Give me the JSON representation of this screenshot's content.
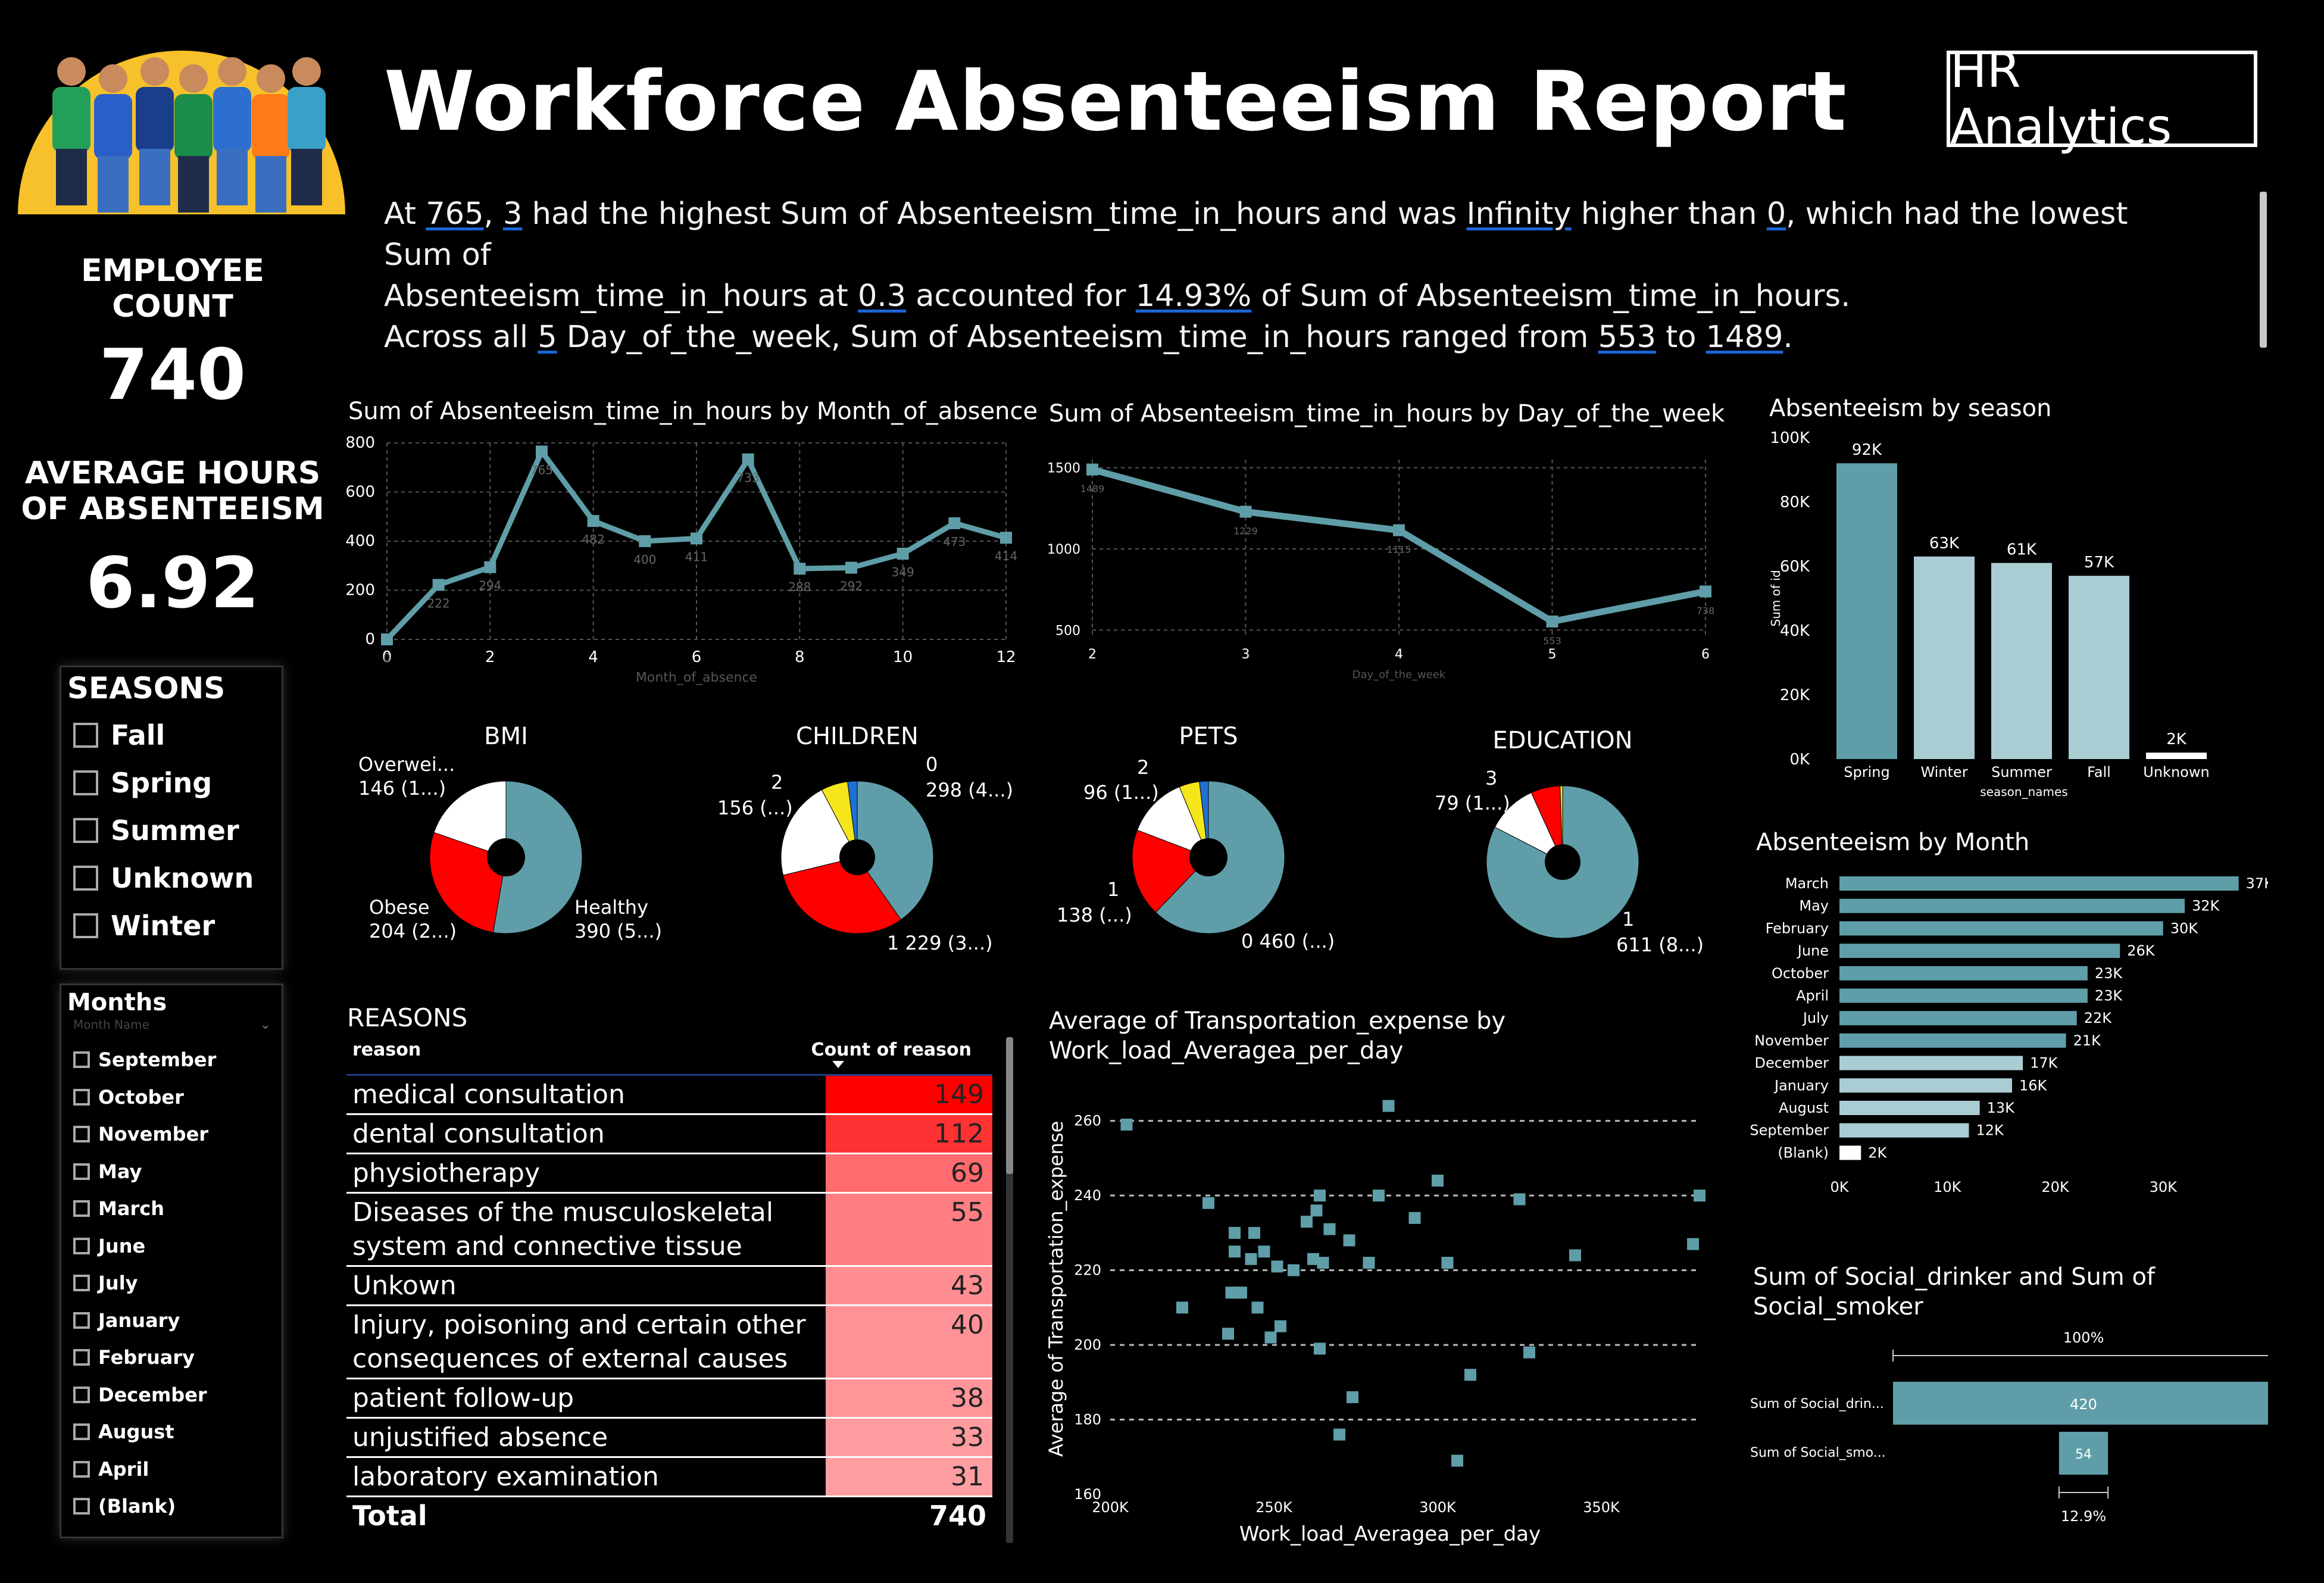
{
  "header": {
    "title": "Workforce Absenteeism Report",
    "badge": "HR Analytics",
    "narrative_line1": [
      "At ",
      "765",
      ", ",
      "3",
      " had the highest Sum of Absenteeism_time_in_hours and was ",
      "Infinity",
      " higher than ",
      "0",
      ", which had the lowest Sum of"
    ],
    "narrative_line2": [
      "Absenteeism_time_in_hours at ",
      "0.3",
      " accounted for ",
      "14.93%",
      " of Sum of Absenteeism_time_in_hours."
    ],
    "narrative_line3": [
      "Across all ",
      "5",
      " Day_of_the_week, Sum of Absenteeism_time_in_hours ranged from ",
      "553",
      " to ",
      "1489",
      "."
    ]
  },
  "kpis": {
    "employee_label_1": "EMPLOYEE",
    "employee_label_2": "COUNT",
    "employee_value": "740",
    "avg_label_1": "AVERAGE HOURS",
    "avg_label_2": "OF ABSENTEEISM",
    "avg_value": "6.92"
  },
  "seasons_slicer": {
    "title": "SEASONS",
    "items": [
      "Fall",
      "Spring",
      "Summer",
      "Unknown",
      "Winter"
    ]
  },
  "months_slicer": {
    "title": "Months",
    "header_placeholder": "Month Name",
    "items": [
      "September",
      "October",
      "November",
      "May",
      "March",
      "June",
      "July",
      "January",
      "February",
      "December",
      "August",
      "April",
      "(Blank)"
    ]
  },
  "colors": {
    "teal": "#5f9ea8",
    "light_teal": "#a9cdd3",
    "red": "#ff0000",
    "yellow": "#f5e61c",
    "blue": "#1f6fd4",
    "background": "#000000"
  },
  "chart_data": [
    {
      "id": "by_month",
      "type": "line",
      "title": "Sum of Absenteeism_time_in_hours by Month_of_absence",
      "xlabel": "Month_of_absence",
      "ylabel": "",
      "x": [
        0,
        1,
        2,
        3,
        4,
        5,
        6,
        7,
        8,
        9,
        10,
        11,
        12
      ],
      "y": [
        0,
        222,
        294,
        765,
        482,
        400,
        411,
        733,
        288,
        292,
        349,
        473,
        414
      ],
      "data_labels": [
        "0",
        "222",
        "294",
        "765",
        "482",
        "400",
        "411",
        "733",
        "288",
        "292",
        "349",
        "473",
        "414"
      ],
      "xlim": [
        0,
        12
      ],
      "ylim": [
        0,
        800
      ],
      "xticks": [
        "0",
        "2",
        "4",
        "6",
        "8",
        "10",
        "12"
      ],
      "yticks": [
        "0",
        "200",
        "400",
        "600",
        "800"
      ],
      "grid": true
    },
    {
      "id": "by_day",
      "type": "line",
      "title": "Sum of Absenteeism_time_in_hours by Day_of_the_week",
      "xlabel": "Day_of_the_week",
      "ylabel": "",
      "x": [
        2,
        3,
        4,
        5,
        6
      ],
      "y": [
        1489,
        1229,
        1115,
        553,
        738
      ],
      "data_labels": [
        "1489",
        "1229",
        "1115",
        "553",
        "738"
      ],
      "xlim": [
        2,
        6
      ],
      "ylim": [
        450,
        1550
      ],
      "xticks": [
        "2",
        "3",
        "4",
        "5",
        "6"
      ],
      "yticks": [
        "500",
        "1000",
        "1500"
      ],
      "grid": true
    },
    {
      "id": "by_season",
      "type": "bar",
      "title": "Absenteeism by season",
      "xlabel": "season_names",
      "ylabel": "Sum of id",
      "categories": [
        "Spring",
        "Winter",
        "Summer",
        "Fall",
        "Unknown"
      ],
      "values": [
        92000,
        63000,
        61000,
        57000,
        2000
      ],
      "data_labels": [
        "92K",
        "63K",
        "61K",
        "57K",
        "2K"
      ],
      "ylim": [
        0,
        100000
      ],
      "yticks": [
        "0K",
        "20K",
        "40K",
        "60K",
        "80K",
        "100K"
      ]
    },
    {
      "id": "by_month_bar",
      "type": "bar",
      "orientation": "horizontal",
      "title": "Absenteeism by Month",
      "categories": [
        "March",
        "May",
        "February",
        "June",
        "October",
        "April",
        "July",
        "November",
        "December",
        "January",
        "August",
        "September",
        "(Blank)"
      ],
      "values": [
        37000,
        32000,
        30000,
        26000,
        23000,
        23000,
        22000,
        21000,
        17000,
        16000,
        13000,
        12000,
        2000
      ],
      "data_labels": [
        "37K",
        "32K",
        "30K",
        "26K",
        "23K",
        "23K",
        "22K",
        "21K",
        "17K",
        "16K",
        "13K",
        "12K",
        "2K"
      ],
      "xlim": [
        0,
        40000
      ],
      "xticks": [
        "0K",
        "10K",
        "20K",
        "30K"
      ]
    },
    {
      "id": "bmi",
      "type": "pie",
      "title": "BMI",
      "slices": [
        {
          "label": "Healthy",
          "value": 390,
          "text": "390 (5...)",
          "color": "#5f9ea8"
        },
        {
          "label": "Obese",
          "value": 204,
          "text": "204 (2...)",
          "color": "#ff0000"
        },
        {
          "label": "Overwei...",
          "value": 146,
          "text": "146 (1...)",
          "color": "#ffffff"
        }
      ]
    },
    {
      "id": "children",
      "type": "pie",
      "title": "CHILDREN",
      "slices": [
        {
          "label": "0",
          "value": 298,
          "text": "298 (4...)",
          "color": "#5f9ea8"
        },
        {
          "label": "1",
          "value": 229,
          "text": "229 (3...)",
          "color": "#ff0000"
        },
        {
          "label": "2",
          "value": 156,
          "text": "156 (...)",
          "color": "#ffffff"
        },
        {
          "label": "",
          "value": 42,
          "text": "",
          "color": "#f5e61c"
        },
        {
          "label": "",
          "value": 15,
          "text": "",
          "color": "#1f6fd4"
        }
      ]
    },
    {
      "id": "pets",
      "type": "pie",
      "title": "PETS",
      "slices": [
        {
          "label": "0",
          "value": 460,
          "text": "460 (...)",
          "color": "#5f9ea8"
        },
        {
          "label": "1",
          "value": 138,
          "text": "138 (...)",
          "color": "#ff0000"
        },
        {
          "label": "2",
          "value": 96,
          "text": "96 (1...)",
          "color": "#ffffff"
        },
        {
          "label": "",
          "value": 32,
          "text": "",
          "color": "#f5e61c"
        },
        {
          "label": "",
          "value": 14,
          "text": "",
          "color": "#1f6fd4"
        }
      ]
    },
    {
      "id": "education",
      "type": "pie",
      "title": "EDUCATION",
      "slices": [
        {
          "label": "1",
          "value": 611,
          "text": "611 (8...)",
          "color": "#5f9ea8"
        },
        {
          "label": "3",
          "value": 79,
          "text": "79 (1...)",
          "color": "#ffffff"
        },
        {
          "label": "",
          "value": 46,
          "text": "",
          "color": "#ff0000"
        },
        {
          "label": "",
          "value": 4,
          "text": "",
          "color": "#f5e61c"
        }
      ]
    },
    {
      "id": "reasons",
      "type": "table",
      "title": "REASONS",
      "columns": [
        "reason",
        "Count of reason"
      ],
      "rows": [
        {
          "reason": "medical consultation",
          "count": 149
        },
        {
          "reason": "dental consultation",
          "count": 112
        },
        {
          "reason": "physiotherapy",
          "count": 69
        },
        {
          "reason": "Diseases of the musculoskeletal system and connective tissue",
          "count": 55
        },
        {
          "reason": "Unkown",
          "count": 43
        },
        {
          "reason": "Injury, poisoning and certain other consequences of external causes",
          "count": 40
        },
        {
          "reason": "patient follow-up",
          "count": 38
        },
        {
          "reason": "unjustified absence",
          "count": 33
        },
        {
          "reason": "laboratory examination",
          "count": 31
        }
      ],
      "total_label": "Total",
      "total_value": "740"
    },
    {
      "id": "transport",
      "type": "scatter",
      "title": "Average of Transportation_expense by Work_load_Averagea_per_day",
      "xlabel": "Work_load_Averagea_per_day",
      "ylabel": "Average of Transportation_expense",
      "xlim": [
        200000,
        380000
      ],
      "ylim": [
        160,
        270
      ],
      "xticks": [
        "200K",
        "250K",
        "300K",
        "350K"
      ],
      "yticks": [
        "160",
        "180",
        "200",
        "220",
        "240",
        "260"
      ],
      "points": [
        [
          205000,
          259
        ],
        [
          222000,
          210
        ],
        [
          230000,
          238
        ],
        [
          236000,
          203
        ],
        [
          237000,
          214
        ],
        [
          238000,
          230
        ],
        [
          239000,
          214
        ],
        [
          238000,
          225
        ],
        [
          240000,
          214
        ],
        [
          243000,
          223
        ],
        [
          244000,
          230
        ],
        [
          245000,
          210
        ],
        [
          247000,
          225
        ],
        [
          249000,
          202
        ],
        [
          251000,
          221
        ],
        [
          252000,
          205
        ],
        [
          256000,
          220
        ],
        [
          260000,
          233
        ],
        [
          262000,
          223
        ],
        [
          263000,
          236
        ],
        [
          264000,
          240
        ],
        [
          264000,
          199
        ],
        [
          265000,
          222
        ],
        [
          267000,
          231
        ],
        [
          270000,
          176
        ],
        [
          273000,
          228
        ],
        [
          274000,
          186
        ],
        [
          279000,
          222
        ],
        [
          282000,
          240
        ],
        [
          285000,
          264
        ],
        [
          293000,
          234
        ],
        [
          300000,
          244
        ],
        [
          303000,
          222
        ],
        [
          306000,
          169
        ],
        [
          310000,
          192
        ],
        [
          325000,
          239
        ],
        [
          328000,
          198
        ],
        [
          342000,
          224
        ],
        [
          378000,
          227
        ],
        [
          380000,
          240
        ]
      ]
    },
    {
      "id": "social",
      "type": "bar",
      "orientation": "horizontal",
      "title": "Sum of Social_drinker and Sum of Social_smoker",
      "categories": [
        "Sum of Social_drin...",
        "Sum of Social_smo..."
      ],
      "values": [
        420,
        54
      ],
      "data_labels": [
        "420",
        "54"
      ],
      "top_label": "100%",
      "bottom_label": "12.9%"
    }
  ]
}
